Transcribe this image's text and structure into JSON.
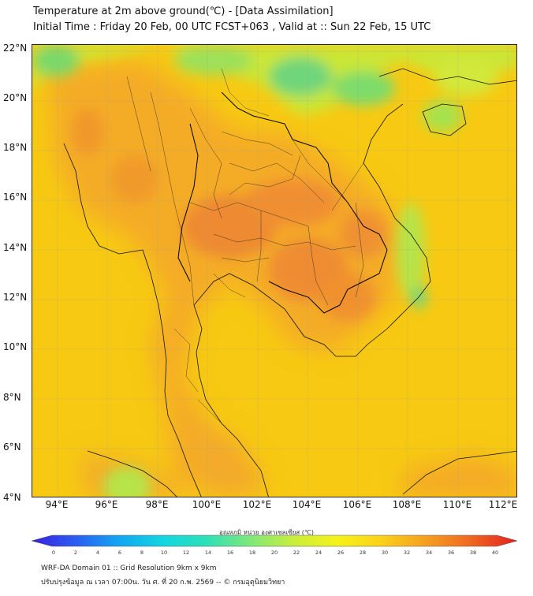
{
  "title": {
    "line1": "Temperature at 2m above ground(℃) - [Data Assimilation]",
    "line2": "Initial Time : Friday 20 Feb, 00 UTC FCST+063 , Valid at :: Sun 22 Feb, 15 UTC"
  },
  "axes": {
    "lat_labels": [
      "22°N",
      "20°N",
      "18°N",
      "16°N",
      "14°N",
      "12°N",
      "10°N",
      "8°N",
      "6°N",
      "4°N"
    ],
    "lon_labels": [
      "94°E",
      "96°E",
      "98°E",
      "100°E",
      "102°E",
      "104°E",
      "106°E",
      "108°E",
      "110°E",
      "112°E"
    ],
    "lat_range": [
      4,
      22.2
    ],
    "lon_range": [
      93,
      112.4
    ]
  },
  "colorbar": {
    "title": "อุณหภูมิ หน่วย องศาเซลเซียส (℃)",
    "ticks": [
      "0",
      "2",
      "4",
      "6",
      "8",
      "10",
      "12",
      "14",
      "16",
      "18",
      "20",
      "22",
      "24",
      "26",
      "28",
      "30",
      "32",
      "34",
      "36",
      "38",
      "40"
    ],
    "min": 0,
    "max": 40,
    "colors": [
      "#3a1fe0",
      "#2a5df2",
      "#12a6f2",
      "#13d6e0",
      "#2ee0b8",
      "#7fe87a",
      "#c9ee3a",
      "#f6f21a",
      "#fbd11a",
      "#f6a020",
      "#ef6a22",
      "#e42020"
    ]
  },
  "footer": {
    "line1": "WRF-DA Domain 01 :: Grid Resolution 9km x 9km",
    "line2": "ปรับปรุงข้อมูล ณ เวลา 07:00น. วัน ศ. ที่ 20 ก.พ. 2569 -- © กรมอุตุนิยมวิทยา"
  },
  "field": {
    "background_color": "#f7ca10",
    "sea_color": "#f8d012",
    "land_warm_color": "#f3a52a",
    "hot_core_color": "#ef8a2e",
    "cool_mountain_color": "#6fd67a",
    "green_highland_color": "#b8e64a"
  }
}
